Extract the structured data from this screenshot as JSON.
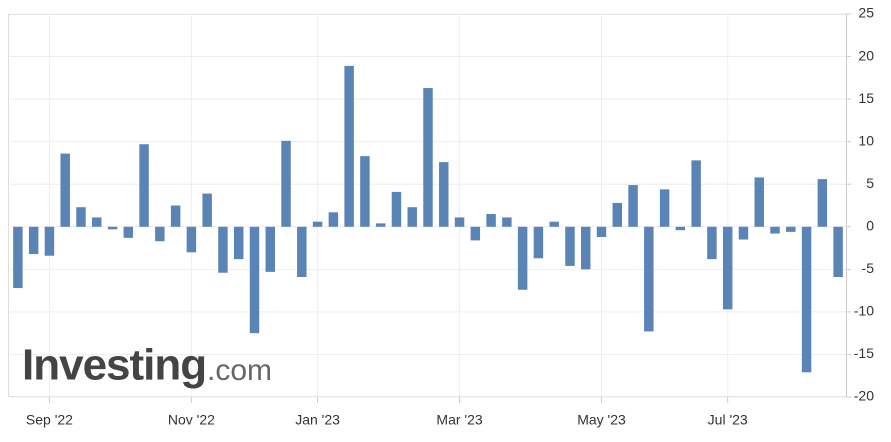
{
  "chart_data": {
    "type": "bar",
    "watermark": {
      "brand": "Investing",
      "suffix": ".com"
    },
    "categories": [
      null,
      null,
      "Sep '22",
      null,
      null,
      null,
      null,
      null,
      null,
      null,
      null,
      "Nov '22",
      null,
      null,
      null,
      null,
      null,
      null,
      null,
      "Jan '23",
      null,
      null,
      null,
      null,
      null,
      null,
      null,
      null,
      "Mar '23",
      null,
      null,
      null,
      null,
      null,
      null,
      null,
      null,
      "May '23",
      null,
      null,
      null,
      null,
      null,
      null,
      null,
      "Jul '23",
      null,
      null,
      null,
      null,
      null,
      null,
      null
    ],
    "values": [
      -7.2,
      -3.2,
      -3.4,
      8.6,
      2.3,
      1.1,
      -0.3,
      -1.3,
      9.7,
      -1.7,
      2.5,
      -3.0,
      3.9,
      -5.4,
      -3.8,
      -12.5,
      -5.3,
      10.1,
      -5.9,
      0.6,
      1.7,
      18.9,
      8.3,
      0.4,
      4.1,
      2.3,
      16.3,
      7.6,
      1.1,
      -1.6,
      1.5,
      1.1,
      -7.4,
      -3.7,
      0.6,
      -4.6,
      -5.0,
      -1.2,
      2.8,
      4.9,
      -12.3,
      4.4,
      -0.4,
      7.8,
      -3.8,
      -9.7,
      -1.5,
      5.8,
      -0.8,
      -0.6,
      -17.1,
      5.6,
      -5.9
    ],
    "color": "#5b84b6",
    "ylim": [
      -20,
      25
    ],
    "yticks": [
      -20,
      -15,
      -10,
      -5,
      0,
      5,
      10,
      15,
      20,
      25
    ],
    "grid": true
  }
}
